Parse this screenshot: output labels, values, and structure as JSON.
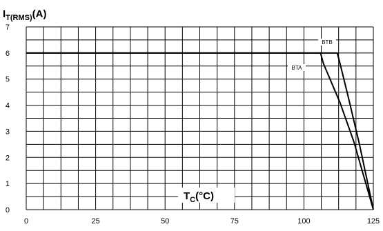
{
  "chart_data": {
    "type": "line",
    "ylabel": {
      "main": "I",
      "sub": "T(RMS)",
      "unit": "(A)"
    },
    "xlabel": {
      "main": "T",
      "sub": "C",
      "unit": "(°C)"
    },
    "xlim": [
      0,
      125
    ],
    "ylim": [
      0,
      7
    ],
    "x_ticks": [
      0,
      25,
      50,
      75,
      100,
      125
    ],
    "y_ticks": [
      0,
      1,
      2,
      3,
      4,
      5,
      6,
      7
    ],
    "grid": true,
    "series": [
      {
        "name": "BTB",
        "x": [
          0,
          112,
          113,
          116,
          120,
          125
        ],
        "y": [
          6,
          6,
          5.6,
          4.3,
          2.5,
          0
        ]
      },
      {
        "name": "BTA",
        "x": [
          0,
          106,
          107,
          109,
          113,
          118,
          125
        ],
        "y": [
          6,
          6,
          5.6,
          5.1,
          4.1,
          2.6,
          0
        ]
      }
    ]
  }
}
